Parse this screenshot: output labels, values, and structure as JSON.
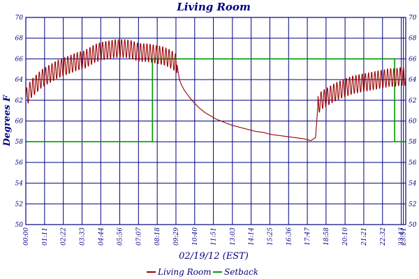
{
  "chart_data": {
    "type": "line",
    "title": "Living Room",
    "ylabel": "Degrees F",
    "xlabel": "02/19/12 (EST)",
    "ylim": [
      50,
      70
    ],
    "y_ticks": [
      50,
      52,
      54,
      56,
      58,
      60,
      62,
      64,
      66,
      68,
      70
    ],
    "x_unit": "hours",
    "xlim": [
      0,
      24.0
    ],
    "x_ticks": [
      {
        "h": 0.0,
        "label": "00:00"
      },
      {
        "h": 1.1833,
        "label": "01:11"
      },
      {
        "h": 2.3667,
        "label": "02:22"
      },
      {
        "h": 3.55,
        "label": "03:33"
      },
      {
        "h": 4.7333,
        "label": "04:44"
      },
      {
        "h": 5.9333,
        "label": "05:56"
      },
      {
        "h": 7.1167,
        "label": "07:07"
      },
      {
        "h": 8.3,
        "label": "08:18"
      },
      {
        "h": 9.4833,
        "label": "09:29"
      },
      {
        "h": 10.6667,
        "label": "10:40"
      },
      {
        "h": 11.85,
        "label": "11:51"
      },
      {
        "h": 13.05,
        "label": "13:03"
      },
      {
        "h": 14.2333,
        "label": "14:14"
      },
      {
        "h": 15.4167,
        "label": "15:25"
      },
      {
        "h": 16.6,
        "label": "16:36"
      },
      {
        "h": 17.7833,
        "label": "17:47"
      },
      {
        "h": 18.9667,
        "label": "18:58"
      },
      {
        "h": 20.1667,
        "label": "20:10"
      },
      {
        "h": 21.35,
        "label": "21:21"
      },
      {
        "h": 22.5333,
        "label": "22:32"
      },
      {
        "h": 23.7167,
        "label": "23:43"
      },
      {
        "h": 23.85,
        "label": "23:51"
      }
    ],
    "grid": true,
    "legend_position": "bottom",
    "series": [
      {
        "name": "Living Room",
        "color": "#990000",
        "points": [
          [
            0.0,
            62.2
          ],
          [
            0.33,
            63.1
          ],
          [
            0.67,
            63.6
          ],
          [
            1.0,
            64.1
          ],
          [
            1.33,
            64.4
          ],
          [
            1.67,
            64.7
          ],
          [
            2.0,
            65.0
          ],
          [
            2.33,
            65.2
          ],
          [
            2.67,
            65.4
          ],
          [
            3.0,
            65.6
          ],
          [
            3.33,
            65.8
          ],
          [
            3.67,
            65.9
          ],
          [
            4.0,
            66.2
          ],
          [
            4.33,
            66.5
          ],
          [
            4.67,
            66.7
          ],
          [
            5.0,
            66.8
          ],
          [
            5.33,
            66.9
          ],
          [
            5.67,
            67.0
          ],
          [
            6.0,
            67.0
          ],
          [
            6.33,
            67.0
          ],
          [
            6.67,
            66.9
          ],
          [
            7.0,
            66.7
          ],
          [
            7.33,
            66.6
          ],
          [
            7.67,
            66.6
          ],
          [
            8.0,
            66.5
          ],
          [
            8.33,
            66.4
          ],
          [
            8.67,
            66.3
          ],
          [
            9.0,
            66.1
          ],
          [
            9.33,
            65.8
          ],
          [
            9.55,
            65.5
          ],
          [
            9.7,
            64.0
          ],
          [
            9.83,
            63.5
          ],
          [
            10.0,
            63.0
          ],
          [
            10.33,
            62.3
          ],
          [
            10.67,
            61.7
          ],
          [
            11.0,
            61.2
          ],
          [
            11.33,
            60.8
          ],
          [
            11.67,
            60.5
          ],
          [
            12.0,
            60.2
          ],
          [
            12.5,
            59.9
          ],
          [
            13.0,
            59.6
          ],
          [
            13.5,
            59.4
          ],
          [
            14.0,
            59.2
          ],
          [
            14.5,
            59.0
          ],
          [
            15.0,
            58.9
          ],
          [
            15.5,
            58.7
          ],
          [
            16.0,
            58.6
          ],
          [
            16.5,
            58.5
          ],
          [
            17.0,
            58.4
          ],
          [
            17.5,
            58.3
          ],
          [
            17.8,
            58.2
          ],
          [
            18.0,
            58.1
          ],
          [
            18.3,
            58.4
          ],
          [
            18.45,
            61.5
          ],
          [
            18.67,
            62.0
          ],
          [
            19.0,
            62.3
          ],
          [
            19.33,
            62.6
          ],
          [
            19.67,
            62.9
          ],
          [
            20.0,
            63.1
          ],
          [
            20.33,
            63.3
          ],
          [
            20.67,
            63.5
          ],
          [
            21.0,
            63.6
          ],
          [
            21.33,
            63.7
          ],
          [
            21.67,
            63.8
          ],
          [
            22.0,
            63.9
          ],
          [
            22.33,
            64.0
          ],
          [
            22.67,
            64.1
          ],
          [
            23.0,
            64.2
          ],
          [
            23.33,
            64.2
          ],
          [
            23.67,
            64.3
          ],
          [
            24.0,
            64.3
          ]
        ],
        "oscillation_amplitude_deg_f": 0.9,
        "oscillation_cycles_per_hour": 5,
        "oscillation_ranges_hours": [
          [
            0.0,
            9.55
          ],
          [
            18.45,
            24.0
          ]
        ]
      },
      {
        "name": "Setback",
        "color": "#009900",
        "points": [
          [
            0.0,
            58
          ],
          [
            8.0,
            58
          ],
          [
            8.0,
            66
          ],
          [
            23.3,
            66
          ],
          [
            23.3,
            58
          ],
          [
            24.0,
            58
          ]
        ]
      }
    ]
  }
}
